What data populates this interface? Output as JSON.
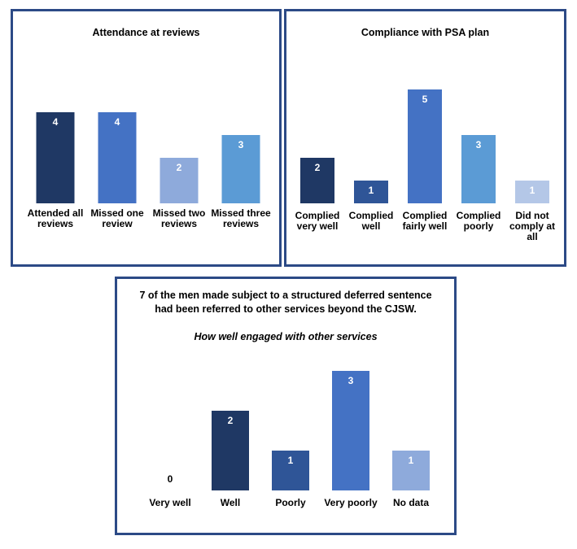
{
  "chart_data": [
    {
      "type": "bar",
      "title": "Attendance at reviews",
      "categories": [
        "Attended all reviews",
        "Missed one review",
        "Missed two reviews",
        "Missed three reviews"
      ],
      "category_lines": [
        [
          "Attended all",
          "reviews"
        ],
        [
          "Missed one",
          "review"
        ],
        [
          "Missed two",
          "reviews"
        ],
        [
          "Missed three",
          "reviews"
        ]
      ],
      "values": [
        4,
        4,
        2,
        3
      ],
      "colors": [
        "#1f3864",
        "#4472c4",
        "#8eaadb",
        "#5b9bd5"
      ],
      "ylim": [
        0,
        5
      ],
      "grid": false,
      "legend": "none"
    },
    {
      "type": "bar",
      "title": "Compliance with PSA plan",
      "categories": [
        "Complied very well",
        "Complied well",
        "Complied fairly well",
        "Complied poorly",
        "Did not comply at all"
      ],
      "category_lines": [
        [
          "Complied",
          "very well"
        ],
        [
          "Complied",
          "well"
        ],
        [
          "Complied",
          "fairly well"
        ],
        [
          "Complied",
          "poorly"
        ],
        [
          "Did not",
          "comply at",
          "all"
        ]
      ],
      "values": [
        2,
        1,
        5,
        3,
        1
      ],
      "colors": [
        "#1f3864",
        "#2f5597",
        "#4472c4",
        "#5b9bd5",
        "#b4c7e7"
      ],
      "ylim": [
        0,
        5
      ],
      "grid": false,
      "legend": "none"
    },
    {
      "type": "bar",
      "title": "7 of the men made subject to a structured deferred sentence had been referred to other services beyond the CJSW.",
      "title_lines": [
        "7 of the men made subject to a structured deferred sentence",
        "had been referred to other services beyond the CJSW."
      ],
      "subtitle": "How well engaged with other services",
      "categories": [
        "Very well",
        "Well",
        "Poorly",
        "Very poorly",
        "No data"
      ],
      "category_lines": [
        [
          "Very well"
        ],
        [
          "Well"
        ],
        [
          "Poorly"
        ],
        [
          "Very poorly"
        ],
        [
          "No data"
        ]
      ],
      "values": [
        0,
        2,
        1,
        3,
        1
      ],
      "colors": [
        "#1f3864",
        "#1f3864",
        "#2f5597",
        "#4472c4",
        "#8eaadb"
      ],
      "ylim": [
        0,
        3
      ],
      "grid": false,
      "legend": "none"
    }
  ]
}
